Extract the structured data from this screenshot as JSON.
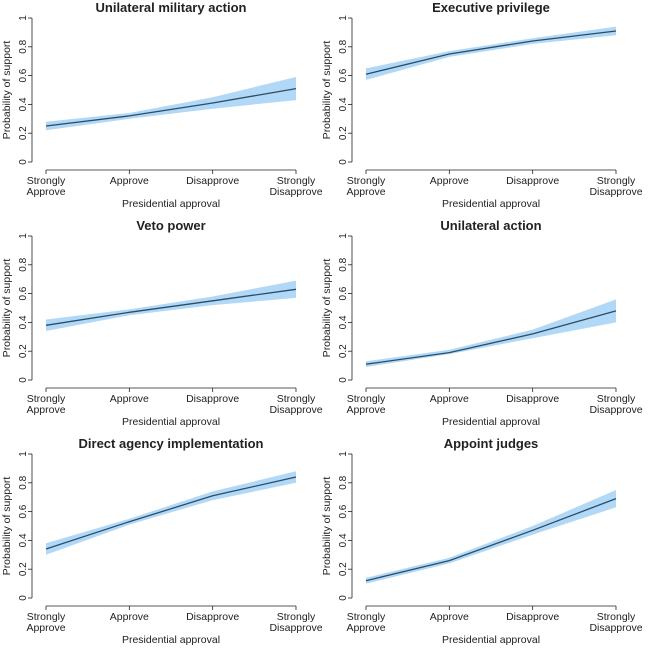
{
  "chart_data": [
    {
      "type": "line",
      "title": "Unilateral military action",
      "xlabel": "Presidential approval",
      "ylabel": "Probability of support",
      "categories": [
        "Strongly Approve",
        "Approve",
        "Disapprove",
        "Strongly Disapprove"
      ],
      "ylim": [
        0,
        1
      ],
      "yticks": [
        "0",
        "0.2",
        "0.4",
        "0.6",
        "0.8",
        "1"
      ],
      "series": [
        {
          "values": [
            0.25,
            0.32,
            0.41,
            0.51
          ],
          "lower": [
            0.22,
            0.3,
            0.37,
            0.43
          ],
          "upper": [
            0.28,
            0.34,
            0.45,
            0.59
          ]
        }
      ]
    },
    {
      "type": "line",
      "title": "Executive privilege",
      "xlabel": "Presidential approval",
      "ylabel": "Probability of support",
      "categories": [
        "Strongly Approve",
        "Approve",
        "Disapprove",
        "Strongly Disapprove"
      ],
      "ylim": [
        0,
        1
      ],
      "yticks": [
        "0",
        "0.2",
        "0.4",
        "0.6",
        "0.8",
        "1"
      ],
      "series": [
        {
          "values": [
            0.61,
            0.75,
            0.84,
            0.91
          ],
          "lower": [
            0.57,
            0.73,
            0.82,
            0.88
          ],
          "upper": [
            0.65,
            0.77,
            0.86,
            0.94
          ]
        }
      ]
    },
    {
      "type": "line",
      "title": "Veto power",
      "xlabel": "Presidential approval",
      "ylabel": "Probability of support",
      "categories": [
        "Strongly Approve",
        "Approve",
        "Disapprove",
        "Strongly Disapprove"
      ],
      "ylim": [
        0,
        1
      ],
      "yticks": [
        "0",
        "0.2",
        "0.4",
        "0.6",
        "0.8",
        "1"
      ],
      "series": [
        {
          "values": [
            0.38,
            0.47,
            0.55,
            0.63
          ],
          "lower": [
            0.34,
            0.45,
            0.52,
            0.57
          ],
          "upper": [
            0.42,
            0.49,
            0.58,
            0.69
          ]
        }
      ]
    },
    {
      "type": "line",
      "title": "Unilateral action",
      "xlabel": "Presidential approval",
      "ylabel": "Probability of support",
      "categories": [
        "Strongly Approve",
        "Approve",
        "Disapprove",
        "Strongly Disapprove"
      ],
      "ylim": [
        0,
        1
      ],
      "yticks": [
        "0",
        "0.2",
        "0.4",
        "0.6",
        "0.8",
        "1"
      ],
      "series": [
        {
          "values": [
            0.11,
            0.19,
            0.32,
            0.48
          ],
          "lower": [
            0.09,
            0.18,
            0.29,
            0.4
          ],
          "upper": [
            0.13,
            0.21,
            0.35,
            0.56
          ]
        }
      ]
    },
    {
      "type": "line",
      "title": "Direct agency implementation",
      "xlabel": "Presidential approval",
      "ylabel": "Probability of support",
      "categories": [
        "Strongly Approve",
        "Approve",
        "Disapprove",
        "Strongly Disapprove"
      ],
      "ylim": [
        0,
        1
      ],
      "yticks": [
        "0",
        "0.2",
        "0.4",
        "0.6",
        "0.8",
        "1"
      ],
      "series": [
        {
          "values": [
            0.34,
            0.53,
            0.71,
            0.84
          ],
          "lower": [
            0.3,
            0.51,
            0.68,
            0.8
          ],
          "upper": [
            0.38,
            0.55,
            0.74,
            0.88
          ]
        }
      ]
    },
    {
      "type": "line",
      "title": "Appoint judges",
      "xlabel": "Presidential approval",
      "ylabel": "Probability of support",
      "categories": [
        "Strongly Approve",
        "Approve",
        "Disapprove",
        "Strongly Disapprove"
      ],
      "ylim": [
        0,
        1
      ],
      "yticks": [
        "0",
        "0.2",
        "0.4",
        "0.6",
        "0.8",
        "1"
      ],
      "series": [
        {
          "values": [
            0.12,
            0.26,
            0.47,
            0.69
          ],
          "lower": [
            0.1,
            0.24,
            0.44,
            0.63
          ],
          "upper": [
            0.14,
            0.28,
            0.5,
            0.75
          ]
        }
      ]
    }
  ],
  "colors": {
    "line": "#2b4d66",
    "band": "#a9d4f5",
    "axis": "#222222"
  }
}
